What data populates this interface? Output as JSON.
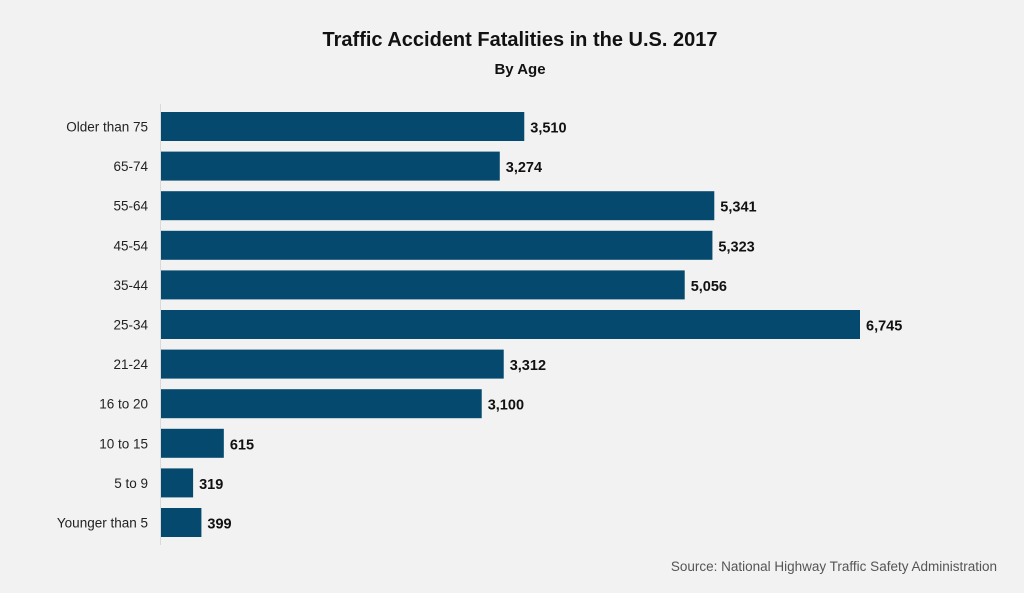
{
  "chart_data": {
    "type": "bar",
    "orientation": "horizontal",
    "title": "Traffic Accident Fatalities in the U.S. 2017",
    "subtitle": "By Age",
    "source": "Source: National Highway Traffic Safety Administration",
    "categories": [
      "Older than 75",
      "65-74",
      "55-64",
      "45-54",
      "35-44",
      "25-34",
      "21-24",
      "16 to 20",
      "10 to 15",
      "5 to 9",
      "Younger than 5"
    ],
    "values": [
      3510,
      3274,
      5341,
      5323,
      5056,
      6745,
      3312,
      3100,
      615,
      319,
      399
    ],
    "value_labels": [
      "3,510",
      "3,274",
      "5,341",
      "5,323",
      "5,056",
      "6,745",
      "3,312",
      "3,100",
      "615",
      "319",
      "399"
    ],
    "xlim": [
      0,
      6745
    ],
    "grid": false,
    "legend": "none",
    "colors": {
      "bar": "#054a6e",
      "background": "#f2f2f2",
      "axis": "#d9d9d9"
    }
  }
}
